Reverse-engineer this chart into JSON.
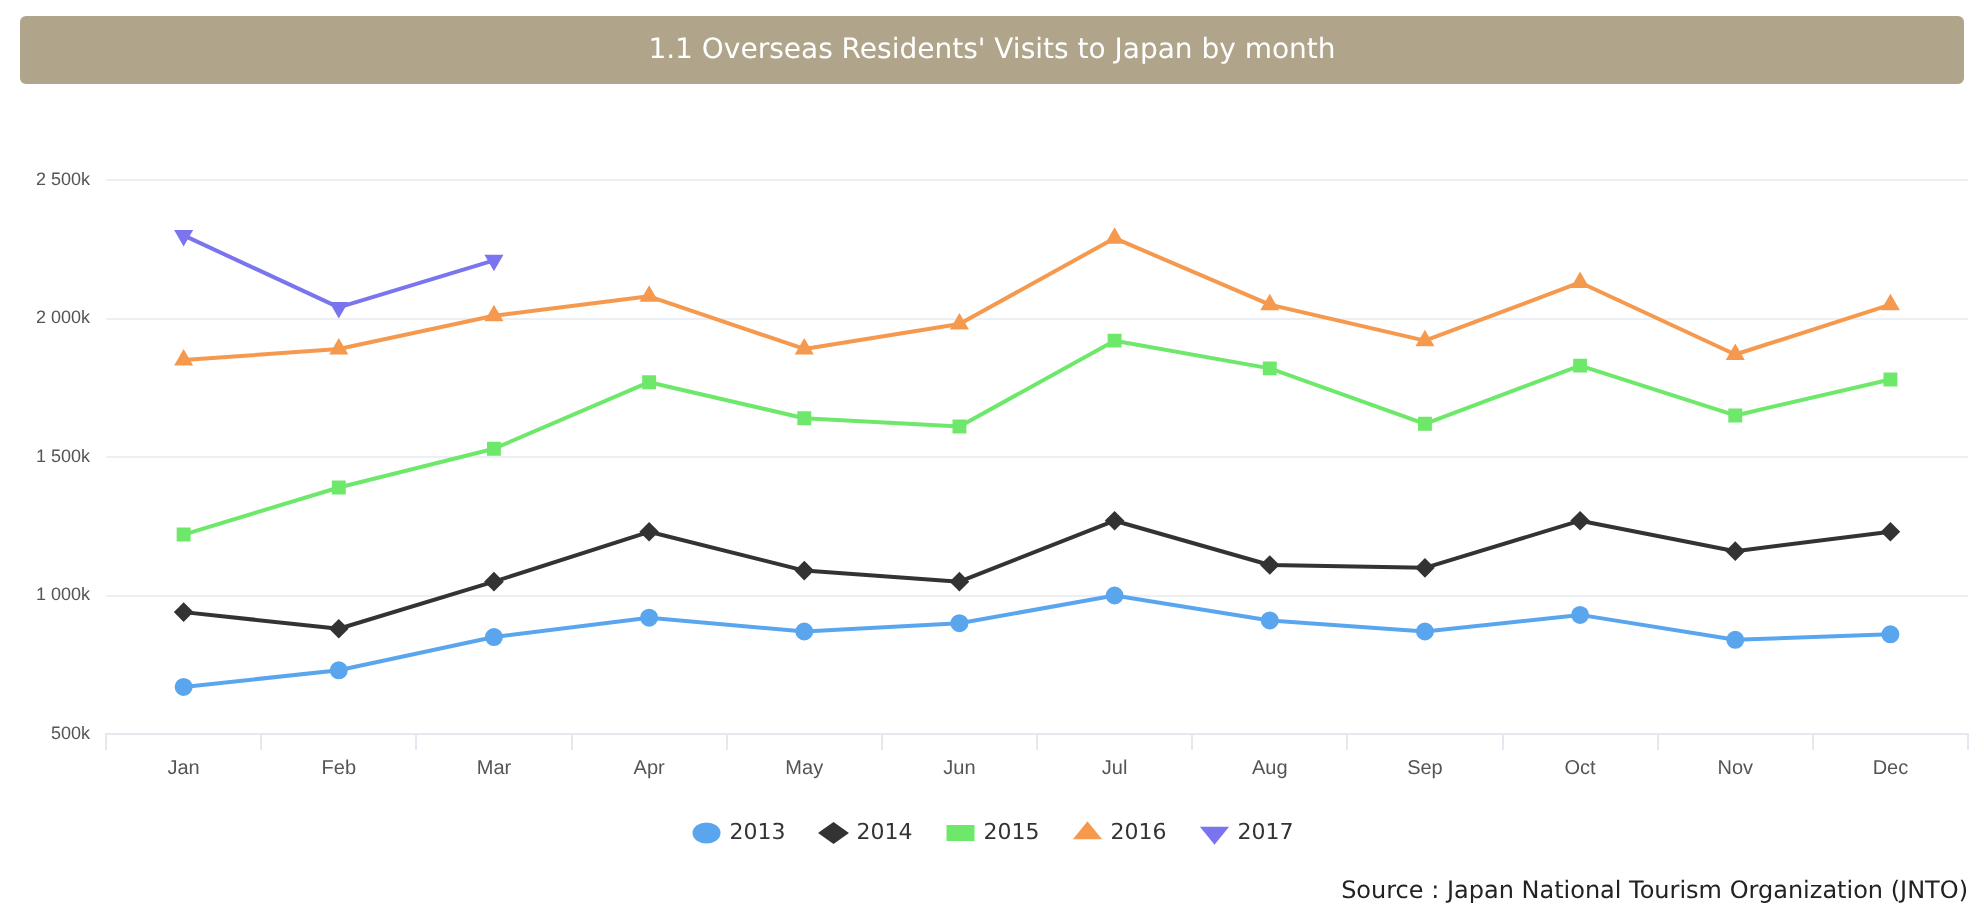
{
  "chart_data": {
    "type": "line",
    "title": "1.1 Overseas Residents' Visits to Japan by month",
    "categories": [
      "Jan",
      "Feb",
      "Mar",
      "Apr",
      "May",
      "Jun",
      "Jul",
      "Aug",
      "Sep",
      "Oct",
      "Nov",
      "Dec"
    ],
    "series": [
      {
        "name": "2013",
        "color": "#5aa6ee",
        "marker": "circle",
        "values": [
          670,
          730,
          850,
          920,
          870,
          900,
          1000,
          910,
          870,
          930,
          840,
          860
        ]
      },
      {
        "name": "2014",
        "color": "#333333",
        "marker": "diamond",
        "values": [
          940,
          880,
          1050,
          1230,
          1090,
          1050,
          1270,
          1110,
          1100,
          1270,
          1160,
          1230
        ]
      },
      {
        "name": "2015",
        "color": "#6ee86a",
        "marker": "square",
        "values": [
          1220,
          1390,
          1530,
          1770,
          1640,
          1610,
          1920,
          1820,
          1620,
          1830,
          1650,
          1780
        ]
      },
      {
        "name": "2016",
        "color": "#f5994f",
        "marker": "triangle",
        "values": [
          1850,
          1890,
          2010,
          2080,
          1890,
          1980,
          2290,
          2050,
          1920,
          2130,
          1870,
          2050
        ]
      },
      {
        "name": "2017",
        "color": "#7b74ef",
        "marker": "triangle-down",
        "values": [
          2300,
          2040,
          2210,
          null,
          null,
          null,
          null,
          null,
          null,
          null,
          null,
          null
        ]
      }
    ],
    "ylim": [
      500,
      2500
    ],
    "yticks": [
      {
        "value": 500,
        "label": "500k"
      },
      {
        "value": 1000,
        "label": "1 000k"
      },
      {
        "value": 1500,
        "label": "1 500k"
      },
      {
        "value": 2000,
        "label": "2 000k"
      },
      {
        "value": 2500,
        "label": "2 500k"
      }
    ],
    "grid": "y",
    "legend": "bottom",
    "line_style": "solid",
    "annotations": [
      "Source : Japan National Tourism Organization (JNTO)"
    ]
  }
}
